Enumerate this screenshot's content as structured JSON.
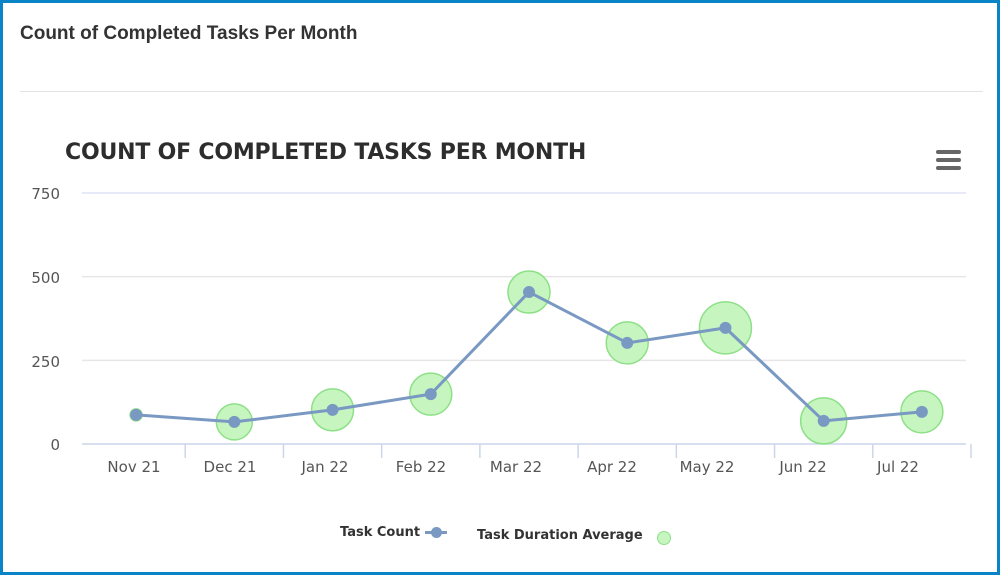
{
  "panel": {
    "title": "Count of Completed Tasks Per Month"
  },
  "chart": {
    "title": "COUNT OF COMPLETED TASKS PER MONTH",
    "menu_icon": "hamburger-menu-icon",
    "y_ticks": [
      "750",
      "500",
      "250",
      "0"
    ],
    "x_ticks": [
      "Nov 21",
      "Dec 21",
      "Jan 22",
      "Feb 22",
      "Mar 22",
      "Apr 22",
      "May 22",
      "Jun 22",
      "Jul 22"
    ],
    "legend": {
      "task_count": "Task Count",
      "task_duration_average": "Task Duration Average"
    },
    "colors": {
      "line": "#7a99c2",
      "bubble_fill": "#c6f5c0",
      "bubble_stroke": "#8ee087",
      "grid": "#e6e6e6",
      "axis": "#ccd6eb",
      "border": "#0a84c6"
    }
  },
  "chart_data": {
    "type": "line",
    "title": "COUNT OF COMPLETED TASKS PER MONTH",
    "xlabel": "",
    "ylabel": "",
    "categories": [
      "Nov 21",
      "Dec 21",
      "Jan 22",
      "Feb 22",
      "Mar 22",
      "Apr 22",
      "May 22",
      "Jun 22",
      "Jul 22"
    ],
    "series": [
      {
        "name": "Task Count",
        "type": "line",
        "values": [
          87,
          66,
          102,
          149,
          454,
          302,
          347,
          69,
          96
        ]
      },
      {
        "name": "Task Duration Average",
        "type": "bubble",
        "values": [
          87,
          66,
          102,
          149,
          454,
          302,
          347,
          69,
          96
        ],
        "bubble_radius_px": [
          6,
          18,
          21,
          21,
          21,
          21,
          26,
          23,
          21
        ]
      }
    ],
    "ylim": [
      0,
      750
    ],
    "y_ticks": [
      0,
      250,
      500,
      750
    ],
    "grid": true,
    "legend_position": "bottom"
  }
}
